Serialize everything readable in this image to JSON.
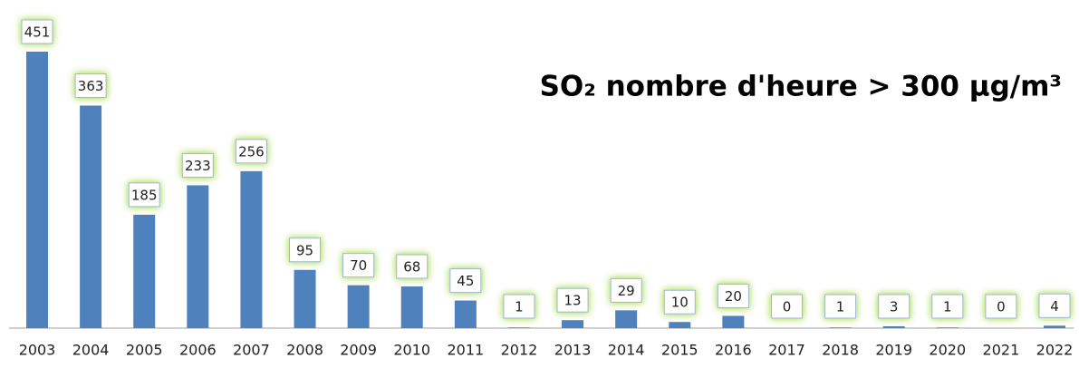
{
  "chart_data": {
    "type": "bar",
    "title": "SO₂ nombre d'heure > 300 µg/m³",
    "categories": [
      "2003",
      "2004",
      "2005",
      "2006",
      "2007",
      "2008",
      "2009",
      "2010",
      "2011",
      "2012",
      "2013",
      "2014",
      "2015",
      "2016",
      "2017",
      "2018",
      "2019",
      "2020",
      "2021",
      "2022"
    ],
    "values": [
      451,
      363,
      185,
      233,
      256,
      95,
      70,
      68,
      45,
      1,
      13,
      29,
      10,
      20,
      0,
      1,
      3,
      1,
      0,
      4
    ],
    "color": "#4f81bd"
  }
}
